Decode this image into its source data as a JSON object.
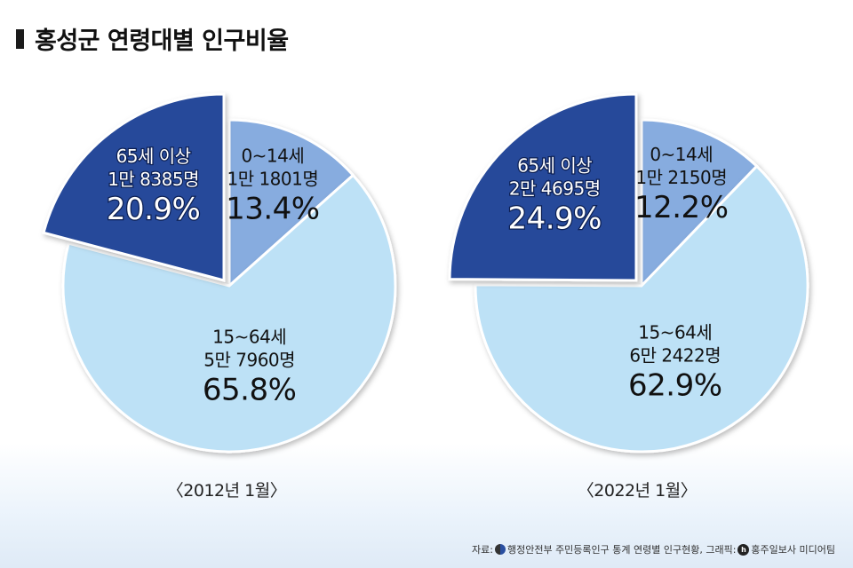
{
  "title": "홍성군 연령대별 인구비율",
  "colors": {
    "senior": "#284a9a",
    "child": "#87acdf",
    "working": "#bde1f6",
    "edge": "#ffffff"
  },
  "chart_data": [
    {
      "type": "pie",
      "caption": "〈2012년 1월〉",
      "slices": [
        {
          "key": "child",
          "label": "0~14세",
          "count": "1만 1801명",
          "percent": "13.4%",
          "value": 13.4
        },
        {
          "key": "working",
          "label": "15~64세",
          "count": "5만 7960명",
          "percent": "65.8%",
          "value": 65.8
        },
        {
          "key": "senior",
          "label": "65세 이상",
          "count": "1만 8385명",
          "percent": "20.9%",
          "value": 20.9,
          "exploded": true
        }
      ]
    },
    {
      "type": "pie",
      "caption": "〈2022년 1월〉",
      "slices": [
        {
          "key": "child",
          "label": "0~14세",
          "count": "1만 2150명",
          "percent": "12.2%",
          "value": 12.2
        },
        {
          "key": "working",
          "label": "15~64세",
          "count": "6만 2422명",
          "percent": "62.9%",
          "value": 62.9
        },
        {
          "key": "senior",
          "label": "65세 이상",
          "count": "2만 4695명",
          "percent": "24.9%",
          "value": 24.9,
          "exploded": true
        }
      ]
    }
  ],
  "source": {
    "prefix": "자료:",
    "text": "행정안전부 주민등록인구 통계 연령별 인구현황, 그래픽:",
    "brand": "홍주일보사 미디어팀"
  }
}
